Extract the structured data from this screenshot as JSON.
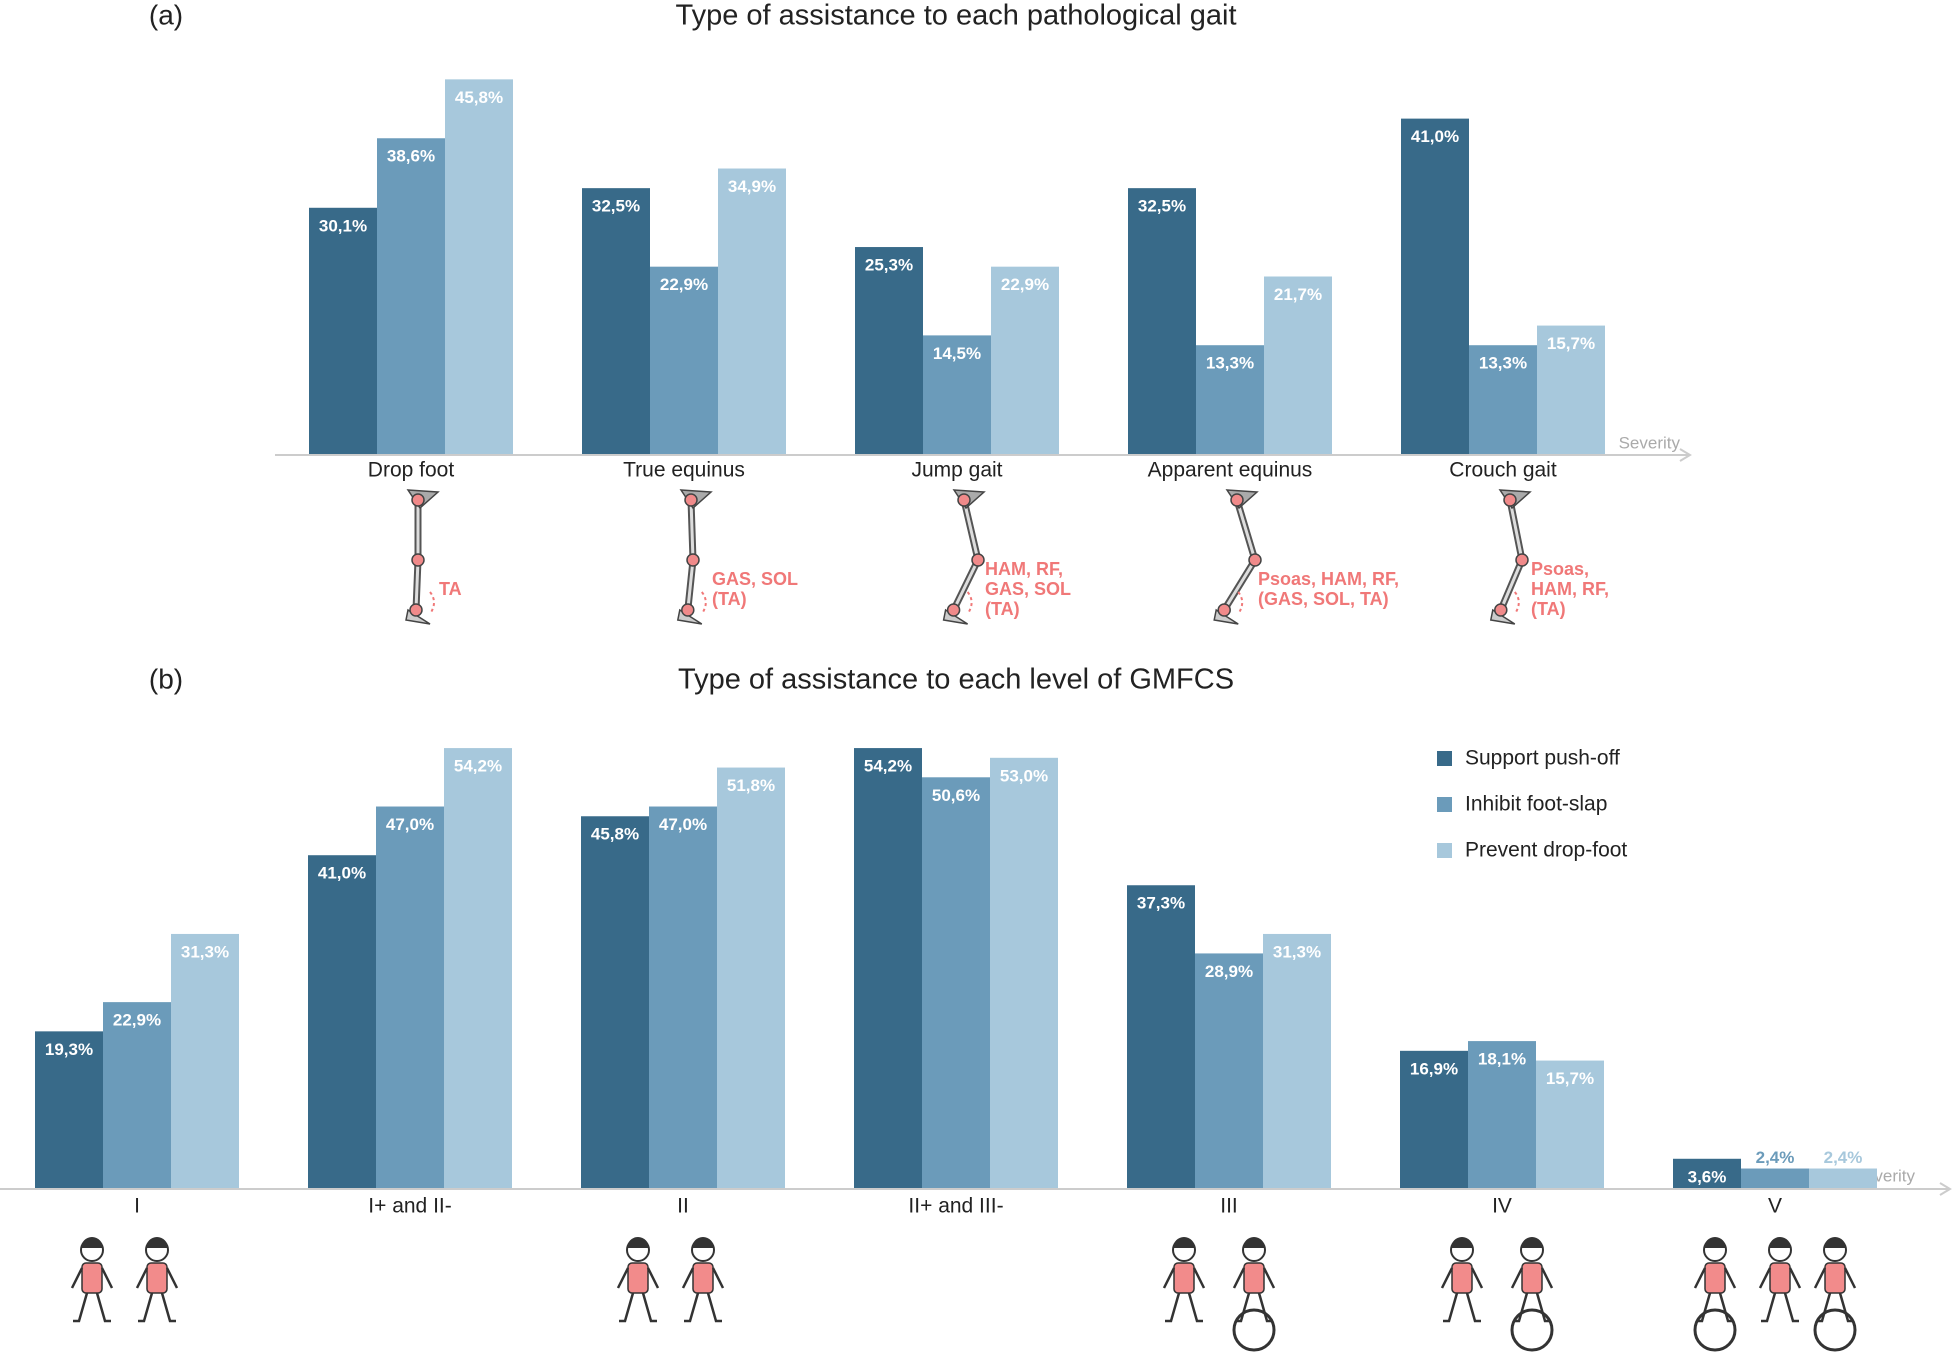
{
  "chart_data": [
    {
      "type": "bar",
      "panel_label": "(a)",
      "title": "Type of assistance to each pathological gait",
      "categories": [
        "Drop foot",
        "True equinus",
        "Jump gait",
        "Apparent equinus",
        "Crouch gait"
      ],
      "annotations": [
        [
          "TA"
        ],
        [
          "GAS, SOL",
          "(TA)"
        ],
        [
          "HAM, RF,",
          "GAS, SOL",
          "(TA)"
        ],
        [
          "Psoas, HAM, RF,",
          "(GAS, SOL, TA)"
        ],
        [
          "Psoas,",
          "HAM, RF,",
          "(TA)"
        ]
      ],
      "axis_label": "Severity",
      "series": [
        {
          "color": "#386a89",
          "values": [
            30.1,
            32.5,
            25.3,
            32.5,
            41.0
          ],
          "value_labels": [
            "30,1%",
            "32,5%",
            "25,3%",
            "32,5%",
            "41,0%"
          ]
        },
        {
          "color": "#6b9bba",
          "values": [
            38.6,
            22.9,
            14.5,
            13.3,
            13.3
          ],
          "value_labels": [
            "38,6%",
            "22,9%",
            "14,5%",
            "13,3%",
            "13,3%"
          ]
        },
        {
          "color": "#a7c8dc",
          "values": [
            45.8,
            34.9,
            22.9,
            21.7,
            15.7
          ],
          "value_labels": [
            "45,8%",
            "34,9%",
            "22,9%",
            "21,7%",
            "15,7%"
          ]
        }
      ],
      "ylim": [
        0,
        50
      ]
    },
    {
      "type": "bar",
      "panel_label": "(b)",
      "title": "Type of assistance to each level of GMFCS",
      "categories": [
        "I",
        "I+ and II-",
        "II",
        "II+ and III-",
        "III",
        "IV",
        "V"
      ],
      "axis_label": "Severity",
      "legend": "upper right",
      "series": [
        {
          "name": "Support push-off",
          "color": "#386a89",
          "values": [
            19.3,
            41.0,
            45.8,
            54.2,
            37.3,
            16.9,
            3.6
          ],
          "value_labels": [
            "19,3%",
            "41,0%",
            "45,8%",
            "54,2%",
            "37,3%",
            "16,9%",
            "3,6%"
          ]
        },
        {
          "name": "Inhibit foot-slap",
          "color": "#6b9bba",
          "values": [
            22.9,
            47.0,
            47.0,
            50.6,
            28.9,
            18.1,
            2.4
          ],
          "value_labels": [
            "22,9%",
            "47,0%",
            "47,0%",
            "50,6%",
            "28,9%",
            "18,1%",
            "2,4%"
          ]
        },
        {
          "name": "Prevent drop-foot",
          "color": "#a7c8dc",
          "values": [
            31.3,
            54.2,
            51.8,
            53.0,
            31.3,
            15.7,
            2.4
          ],
          "value_labels": [
            "31,3%",
            "54,2%",
            "51,8%",
            "53,0%",
            "31,3%",
            "15,7%",
            "2,4%"
          ]
        }
      ],
      "ylim": [
        0,
        60
      ]
    }
  ]
}
